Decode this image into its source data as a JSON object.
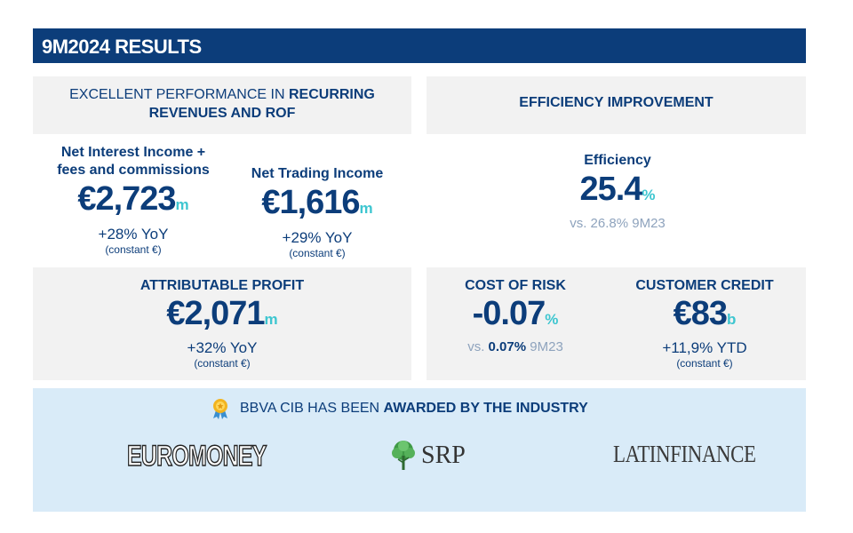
{
  "header": {
    "title": "9M2024 RESULTS"
  },
  "revenue_panel": {
    "title_normal": "EXCELLENT PERFORMANCE IN ",
    "title_bold": "RECURRING",
    "title_line2": "REVENUES AND ROF"
  },
  "efficiency_panel": {
    "title": "EFFICIENCY IMPROVEMENT"
  },
  "nii": {
    "label_line1": "Net Interest Income +",
    "label_line2": "fees and commissions",
    "value": "€2,723",
    "unit": "m",
    "delta": "+28% YoY",
    "note": "(constant €)"
  },
  "nti": {
    "label": "Net Trading Income",
    "value": "€1,616",
    "unit": "m",
    "delta": "+29% YoY",
    "note": "(constant €)"
  },
  "efficiency": {
    "label": "Efficiency",
    "value": "25.4",
    "unit": "%",
    "comparison": "vs. 26.8% 9M23"
  },
  "attributable_profit": {
    "label": "ATTRIBUTABLE PROFIT",
    "value": "€2,071",
    "unit": "m",
    "delta": "+32% YoY",
    "note": "(constant €)"
  },
  "cost_of_risk": {
    "label": "COST OF RISK",
    "value": "-0.07",
    "unit": "%",
    "comparison_prefix": "vs. ",
    "comparison_bold": "0.07%",
    "comparison_suffix": " 9M23"
  },
  "customer_credit": {
    "label": "CUSTOMER CREDIT",
    "value": "€83",
    "unit": "b",
    "delta": "+11,9% YTD",
    "note": "(constant €)"
  },
  "awards": {
    "icon": "award-medal-icon",
    "text_normal": "BBVA CIB HAS BEEN ",
    "text_bold": "AWARDED BY THE INDUSTRY",
    "logos": {
      "euromoney": "EUROMONEY",
      "srp": "SRP",
      "latinfinance": "LATINFINANCE"
    }
  },
  "colors": {
    "navy": "#0c3d7a",
    "cyan": "#3ec6d0",
    "panel": "#f2f2f2",
    "awards_bg": "#d9ebf8"
  }
}
